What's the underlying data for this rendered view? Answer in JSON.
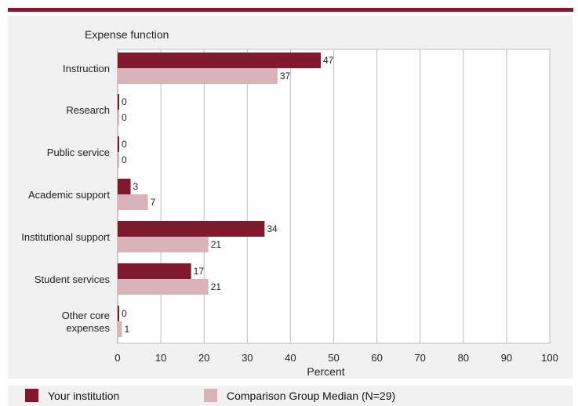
{
  "chart_data": {
    "type": "bar",
    "orientation": "horizontal",
    "category_axis_title": "Expense function",
    "xlabel": "Percent",
    "xlim": [
      0,
      100
    ],
    "xticks": [
      0,
      10,
      20,
      30,
      40,
      50,
      60,
      70,
      80,
      90,
      100
    ],
    "grid": true,
    "legend_position": "bottom",
    "categories": [
      [
        "Instruction"
      ],
      [
        "Research"
      ],
      [
        "Public service"
      ],
      [
        "Academic support"
      ],
      [
        "Institutional support"
      ],
      [
        "Student services"
      ],
      [
        "Other core",
        "expenses"
      ]
    ],
    "series": [
      {
        "name": "Your institution",
        "color": "#7f1a2e",
        "values": [
          47,
          0,
          0,
          3,
          34,
          17,
          0
        ]
      },
      {
        "name": "Comparison Group Median (N=29)",
        "color": "#d9b3ba",
        "values": [
          37,
          0,
          0,
          7,
          21,
          21,
          1
        ]
      }
    ]
  }
}
